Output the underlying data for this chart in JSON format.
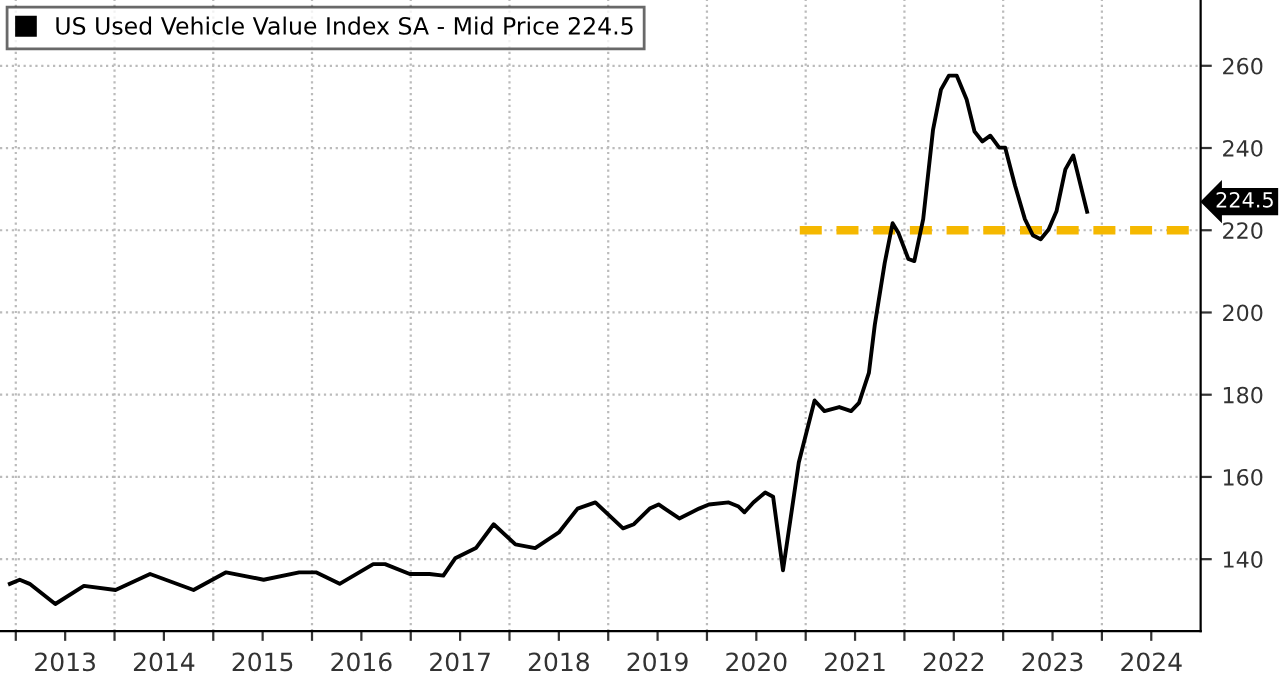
{
  "chart_data": {
    "type": "line",
    "series": [
      {
        "name": "US Used Vehicle Value Index SA - Mid Price 224.5",
        "color": "#000000",
        "x": [
          2012.94,
          2013.04,
          2013.14,
          2013.4,
          2013.69,
          2014.01,
          2014.36,
          2014.8,
          2015.13,
          2015.51,
          2015.87,
          2016.04,
          2016.28,
          2016.62,
          2016.74,
          2016.99,
          2017.19,
          2017.33,
          2017.45,
          2017.66,
          2017.84,
          2018.06,
          2018.26,
          2018.5,
          2018.69,
          2018.87,
          2019.15,
          2019.26,
          2019.42,
          2019.51,
          2019.72,
          2019.92,
          2020.02,
          2020.22,
          2020.32,
          2020.38,
          2020.47,
          2020.59,
          2020.67,
          2020.77,
          2020.93,
          2021.09,
          2021.19,
          2021.34,
          2021.46,
          2021.54,
          2021.64,
          2021.7,
          2021.8,
          2021.88,
          2021.94,
          2022.04,
          2022.1,
          2022.19,
          2022.29,
          2022.37,
          2022.45,
          2022.53,
          2022.63,
          2022.71,
          2022.79,
          2022.87,
          2022.96,
          2023.02,
          2023.12,
          2023.22,
          2023.3,
          2023.38,
          2023.46,
          2023.54,
          2023.63,
          2023.71,
          2023.85
        ],
        "values": [
          134,
          135,
          134,
          129.1,
          133.5,
          132.5,
          136.4,
          132.5,
          136.8,
          135,
          136.8,
          136.8,
          134,
          138.8,
          138.8,
          136.4,
          136.4,
          136,
          140.2,
          142.7,
          148.5,
          143.6,
          142.7,
          146.5,
          152.3,
          153.8,
          147.5,
          148.5,
          152.3,
          153.3,
          149.9,
          152.3,
          153.3,
          153.8,
          152.8,
          151.4,
          153.8,
          156.2,
          155.2,
          137.3,
          163.5,
          178.6,
          176,
          177,
          176,
          178,
          185.3,
          197,
          212,
          221.7,
          219.3,
          213,
          212.5,
          222.7,
          244.5,
          254.2,
          257.6,
          257.6,
          251.8,
          244,
          241.6,
          243,
          240.1,
          240.1,
          230.9,
          222.7,
          218.8,
          217.8,
          220.2,
          224.6,
          234.8,
          238.2,
          224.5
        ]
      },
      {
        "color": "#f5b800",
        "line_style": "dashed",
        "x": [
          2020.94,
          2024.88
        ],
        "values": [
          220,
          220
        ]
      }
    ],
    "xlim": [
      2012.84,
      2025
    ],
    "xticks": [
      {
        "value": 2013,
        "label": null
      },
      {
        "value": 2014,
        "label": null
      },
      {
        "value": 2015,
        "label": null
      },
      {
        "value": 2016,
        "label": null
      },
      {
        "value": 2017,
        "label": null
      },
      {
        "value": 2018,
        "label": null
      },
      {
        "value": 2019,
        "label": null
      },
      {
        "value": 2020,
        "label": null
      },
      {
        "value": 2021,
        "label": null
      },
      {
        "value": 2022,
        "label": null
      },
      {
        "value": 2023,
        "label": null
      },
      {
        "value": 2024,
        "label": null
      },
      {
        "value": 2013.5,
        "label": "2013"
      },
      {
        "value": 2014.5,
        "label": "2014"
      },
      {
        "value": 2015.5,
        "label": "2015"
      },
      {
        "value": 2016.5,
        "label": "2016"
      },
      {
        "value": 2017.5,
        "label": "2017"
      },
      {
        "value": 2018.5,
        "label": "2018"
      },
      {
        "value": 2019.5,
        "label": "2019"
      },
      {
        "value": 2020.5,
        "label": "2020"
      },
      {
        "value": 2021.5,
        "label": "2021"
      },
      {
        "value": 2022.5,
        "label": "2022"
      },
      {
        "value": 2023.5,
        "label": "2023"
      },
      {
        "value": 2024.5,
        "label": "2024"
      }
    ],
    "ylim": [
      122.5,
      276
    ],
    "yticks": [
      140,
      160,
      180,
      200,
      220,
      240,
      260
    ],
    "grid": true,
    "legend": "top left",
    "annotations": [
      "224.5"
    ]
  }
}
